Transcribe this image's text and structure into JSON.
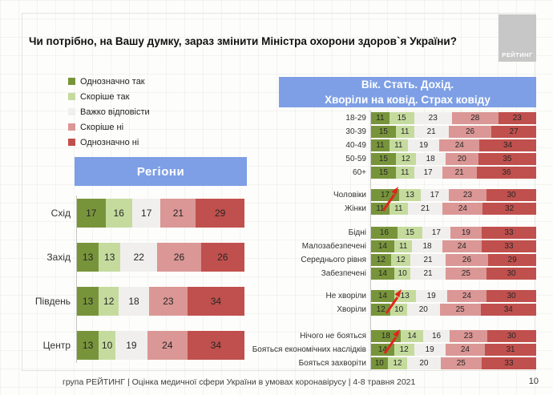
{
  "title": "Чи потрібно, на Вашу думку, зараз змінити Міністра охорони здоров`я України?",
  "logo_text": "РЕЙТИНГ",
  "legend": [
    {
      "label": "Однозначно так",
      "color": "#78943B"
    },
    {
      "label": "Скоріше так",
      "color": "#C5DB9E"
    },
    {
      "label": "Важко відповісти",
      "color": "#F0EFED"
    },
    {
      "label": "Скоріше ні",
      "color": "#DA9795"
    },
    {
      "label": "Однозначно ні",
      "color": "#C0504D"
    }
  ],
  "left_header": "Регіони",
  "right_header_line1": "Вік. Стать. Дохід.",
  "right_header_line2": "Хворіли на ковід. Страх ковіду",
  "chart_data": [
    {
      "type": "bar",
      "variant": "stacked-horizontal-100pct",
      "title": "Регіони",
      "series_labels": [
        "Однозначно так",
        "Скоріше так",
        "Важко відповісти",
        "Скоріше ні",
        "Однозначно ні"
      ],
      "categories": [
        "Схід",
        "Захід",
        "Південь",
        "Центр"
      ],
      "rows": [
        [
          17,
          16,
          17,
          21,
          29
        ],
        [
          13,
          13,
          22,
          26,
          26
        ],
        [
          13,
          12,
          18,
          23,
          34
        ],
        [
          13,
          10,
          19,
          24,
          34
        ]
      ],
      "xlim": [
        0,
        100
      ],
      "unit": "%"
    },
    {
      "type": "bar",
      "variant": "stacked-horizontal-100pct",
      "title": "Вік. Стать. Дохід. Хворіли на ковід. Страх ковіду",
      "series_labels": [
        "Однозначно так",
        "Скоріше так",
        "Важко відповісти",
        "Скоріше ні",
        "Однозначно ні"
      ],
      "groups": [
        {
          "name": "вік",
          "categories": [
            "18-29",
            "30-39",
            "40-49",
            "50-59",
            "60+"
          ],
          "rows": [
            [
              11,
              15,
              23,
              28,
              23
            ],
            [
              15,
              11,
              21,
              26,
              27
            ],
            [
              11,
              11,
              19,
              24,
              34
            ],
            [
              15,
              12,
              18,
              20,
              35
            ],
            [
              15,
              11,
              17,
              21,
              36
            ]
          ]
        },
        {
          "name": "стать",
          "categories": [
            "Чоловіки",
            "Жінки"
          ],
          "rows": [
            [
              17,
              13,
              17,
              23,
              30
            ],
            [
              11,
              11,
              21,
              24,
              32
            ]
          ],
          "annotation": "red-increase-arrow"
        },
        {
          "name": "дохід",
          "categories": [
            "Бідні",
            "Малозабезпечені",
            "Середнього рівня",
            "Забезпечені"
          ],
          "rows": [
            [
              16,
              15,
              17,
              19,
              33
            ],
            [
              14,
              11,
              18,
              24,
              33
            ],
            [
              12,
              12,
              21,
              26,
              29
            ],
            [
              14,
              10,
              21,
              25,
              30
            ]
          ]
        },
        {
          "name": "хворіли на ковід",
          "categories": [
            "Не хворіли",
            "Хворіли"
          ],
          "rows": [
            [
              14,
              13,
              19,
              24,
              30
            ],
            [
              12,
              10,
              20,
              25,
              34
            ]
          ],
          "annotation": "red-increase-arrow"
        },
        {
          "name": "страх ковіду",
          "categories": [
            "Нічого не бояться",
            "Бояться економічних наслідків",
            "Бояться захворіти"
          ],
          "rows": [
            [
              18,
              14,
              16,
              23,
              30
            ],
            [
              14,
              12,
              19,
              24,
              31
            ],
            [
              10,
              12,
              20,
              25,
              33
            ]
          ],
          "annotation": "red-increase-arrow"
        }
      ],
      "xlim": [
        0,
        100
      ],
      "unit": "%"
    }
  ],
  "colors": {
    "header_blue": "#7e9fe5",
    "arrow_red": "#e1251b",
    "logo_gray": "#c7c7c7"
  },
  "footer": {
    "text": "група РЕЙТИНГ  |  Оцінка медичної сфери України в умовах коронавірусу  | 4-8 травня 2021",
    "page": "10"
  }
}
